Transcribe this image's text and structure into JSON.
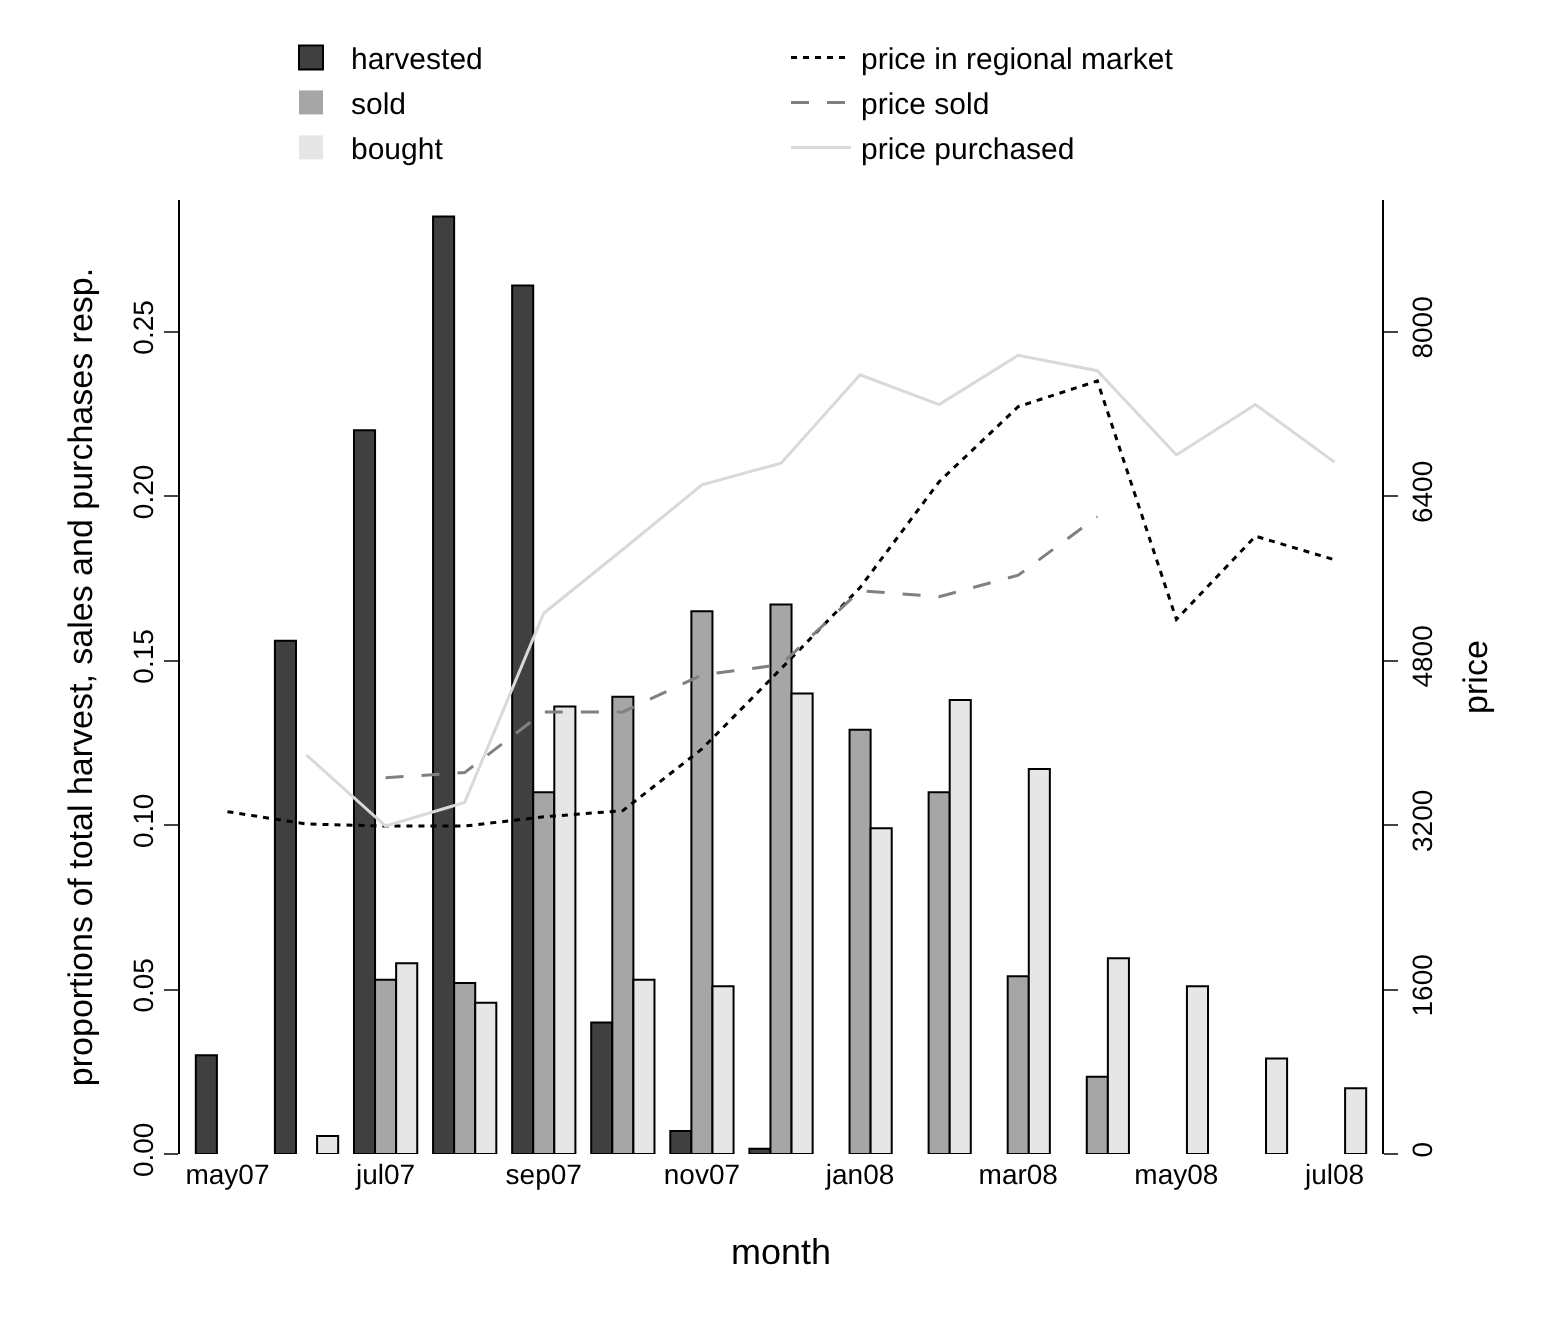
{
  "chart_data": {
    "type": "bar",
    "xlabel": "month",
    "ylabel": "proportions of total harvest, sales and purchases resp.",
    "y2label": "price",
    "categories": [
      "may07",
      null,
      "jul07",
      null,
      "sep07",
      null,
      "nov07",
      null,
      "jan08",
      null,
      "mar08",
      null,
      "may08",
      null,
      "jul08"
    ],
    "series": [
      {
        "name": "harvested",
        "color": "#404040",
        "values": [
          0.03,
          0.156,
          0.22,
          0.285,
          0.264,
          0.04,
          0.007,
          0.0016,
          0,
          0,
          0,
          0,
          0,
          0,
          0
        ]
      },
      {
        "name": "sold",
        "color": "#a6a6a6",
        "values": [
          0,
          0,
          0.053,
          0.052,
          0.11,
          0.139,
          0.165,
          0.167,
          0.129,
          0.11,
          0.054,
          0.0235,
          0,
          0,
          0
        ]
      },
      {
        "name": "bought",
        "color": "#e6e6e6",
        "values": [
          0,
          0.0055,
          0.058,
          0.046,
          0.136,
          0.053,
          0.051,
          0.14,
          0.099,
          0.138,
          0.117,
          0.0595,
          0.051,
          0.029,
          0.02
        ]
      },
      {
        "name": "price in regional market",
        "type": "line",
        "axis": "y2",
        "line_style": "dotted",
        "color": "#000000",
        "values": [
          3330,
          3210,
          3190,
          3190,
          3280,
          3340,
          3940,
          4720,
          5510,
          6540,
          7270,
          7520,
          5200,
          6010,
          5780
        ]
      },
      {
        "name": "price sold",
        "type": "line",
        "axis": "y2",
        "line_style": "dashed",
        "color": "#808080",
        "values": [
          null,
          null,
          3660,
          3710,
          4300,
          4300,
          4660,
          4760,
          5480,
          5420,
          5630,
          6200,
          null,
          null,
          null
        ]
      },
      {
        "name": "price purchased",
        "type": "line",
        "axis": "y2",
        "line_style": "solid",
        "color": "#d9d9d9",
        "values": [
          null,
          3880,
          3190,
          3420,
          5260,
          5880,
          6510,
          6720,
          7580,
          7290,
          7770,
          7620,
          6800,
          7290,
          6730
        ]
      }
    ],
    "ylim": [
      0,
      0.29
    ],
    "yticks": [
      {
        "value": 0,
        "label": "0.00"
      },
      {
        "value": 0.05,
        "label": "0.05"
      },
      {
        "value": 0.1,
        "label": "0.10"
      },
      {
        "value": 0.15,
        "label": "0.15"
      },
      {
        "value": 0.2,
        "label": "0.20"
      },
      {
        "value": 0.25,
        "label": "0.25"
      }
    ],
    "y2lim": [
      0,
      9280
    ],
    "y2ticks": [
      0,
      1600,
      3200,
      4800,
      6400,
      8000
    ],
    "legend": "top",
    "grid": false,
    "marker": "none"
  }
}
